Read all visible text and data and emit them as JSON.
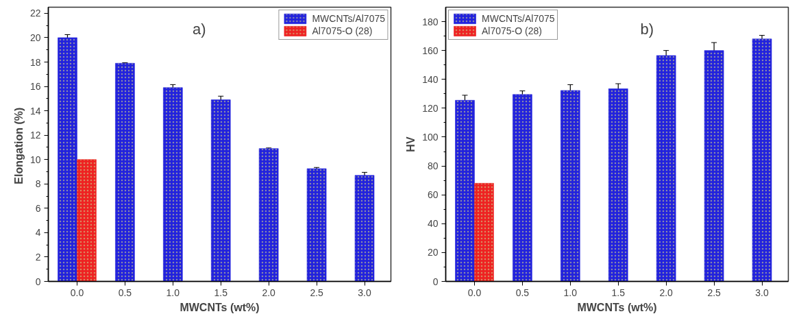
{
  "chart_data": [
    {
      "type": "bar",
      "categories": [
        "0.0",
        "0.5",
        "1.0",
        "1.5",
        "2.0",
        "2.5",
        "3.0"
      ],
      "xlabel": "MWCNTs (wt%)",
      "ylabel": "Elongation  (%)",
      "annotations": [
        "a)"
      ],
      "series": [
        {
          "name": "MWCNTs/Al7075",
          "color": "#2222dd",
          "values": [
            20.0,
            17.9,
            15.9,
            14.9,
            10.9,
            9.25,
            8.7
          ],
          "errors": [
            0.25,
            0.05,
            0.25,
            0.3,
            0.05,
            0.1,
            0.25
          ]
        },
        {
          "name": "Al7075-O (28)",
          "color": "#ee2222",
          "values": [
            10.0,
            null,
            null,
            null,
            null,
            null,
            null
          ]
        }
      ],
      "ylim": [
        0,
        22.5
      ],
      "yticks": [
        0,
        2,
        4,
        6,
        8,
        10,
        12,
        14,
        16,
        18,
        20,
        22
      ],
      "grid": false,
      "legend": "top right"
    },
    {
      "type": "bar",
      "categories": [
        "0.0",
        "0.5",
        "1.0",
        "1.5",
        "2.0",
        "2.5",
        "3.0"
      ],
      "xlabel": "MWCNTs (wt%)",
      "ylabel": "HV",
      "annotations": [
        "b)"
      ],
      "series": [
        {
          "name": "MWCNTs/Al7075",
          "color": "#2222dd",
          "values": [
            125.5,
            129.5,
            132.3,
            133.5,
            156.5,
            160,
            168
          ],
          "errors": [
            3.5,
            2.5,
            4,
            3.5,
            3.5,
            5.5,
            2.5
          ]
        },
        {
          "name": "Al7075-O (28)",
          "color": "#ee2222",
          "values": [
            68,
            null,
            null,
            null,
            null,
            null,
            null
          ]
        }
      ],
      "ylim": [
        0,
        190
      ],
      "yticks": [
        0,
        20,
        40,
        60,
        80,
        100,
        120,
        140,
        160,
        180
      ],
      "grid": false,
      "legend": "top left"
    }
  ]
}
